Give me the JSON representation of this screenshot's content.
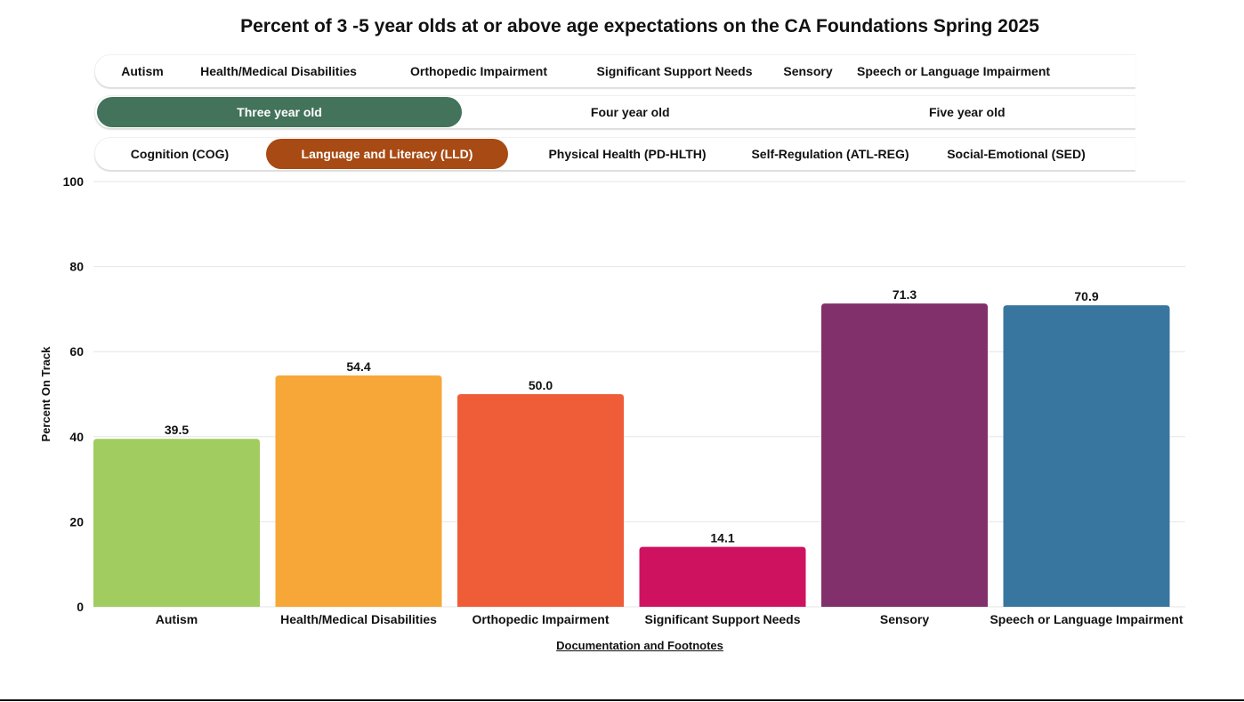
{
  "title": "Percent of 3 -5 year olds at or above age expectations on the CA Foundations Spring 2025",
  "filters": {
    "disabilities": [
      "Autism",
      "Health/Medical Disabilities",
      "Orthopedic Impairment",
      "Significant Support Needs",
      "Sensory",
      "Speech or Language Impairment"
    ],
    "ages": [
      "Three year old",
      "Four year old",
      "Five year old"
    ],
    "ages_selected": 0,
    "domains": [
      "Cognition (COG)",
      "Language and Literacy (LLD)",
      "Physical Health (PD-HLTH)",
      "Self-Regulation (ATL-REG)",
      "Social-Emotional (SED)"
    ],
    "domains_selected": 1
  },
  "colors": {
    "age_selected": "#43735a",
    "domain_selected": "#a84a14"
  },
  "chart_data": {
    "type": "bar",
    "categories": [
      "Autism",
      "Health/Medical Disabilities",
      "Orthopedic Impairment",
      "Significant Support Needs",
      "Sensory",
      "Speech or Language Impairment"
    ],
    "values": [
      39.5,
      54.4,
      50.0,
      14.1,
      71.3,
      70.9
    ],
    "labels": [
      "39.5",
      "54.4",
      "50.0",
      "14.1",
      "71.3",
      "70.9"
    ],
    "colors": [
      "#a1cc5f",
      "#f7a738",
      "#ef5d38",
      "#cf1260",
      "#82306b",
      "#3876a0"
    ],
    "ylabel": "Percent On Track",
    "xlabel": "",
    "ylim": [
      0,
      100
    ],
    "yticks": [
      "0",
      "20",
      "40",
      "60",
      "80",
      "100"
    ],
    "grid": true
  },
  "footer_link": "Documentation and Footnotes"
}
